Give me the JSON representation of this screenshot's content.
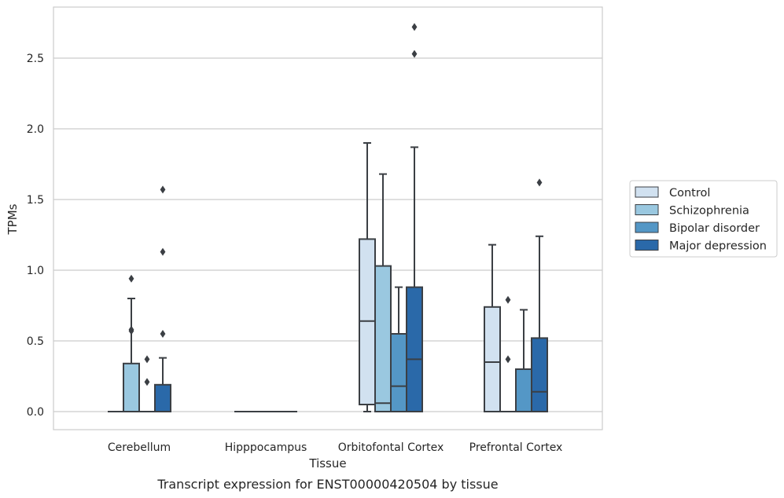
{
  "caption": "Transcript expression for ENST00000420504 by tissue",
  "chart_data": {
    "type": "box",
    "xlabel": "Tissue",
    "ylabel": "TPMs",
    "ylim": [
      -0.13,
      2.87
    ],
    "yticks": [
      "0.0",
      "0.5",
      "1.0",
      "1.5",
      "2.0",
      "2.5"
    ],
    "ytick_values": [
      0.0,
      0.5,
      1.0,
      1.5,
      2.0,
      2.5
    ],
    "grid": true,
    "legend_position": "right",
    "categories": [
      "Cerebellum",
      "Hipppocampus",
      "Orbitofontal Cortex",
      "Prefrontal Cortex"
    ],
    "series": [
      {
        "name": "Control",
        "color": "#d1e1f0",
        "boxes": [
          {
            "q1": 0.0,
            "median": 0.0,
            "q3": 0.0,
            "whislo": 0.0,
            "whishi": 0.0,
            "fliers": []
          },
          {
            "q1": 0.0,
            "median": 0.0,
            "q3": 0.0,
            "whislo": 0.0,
            "whishi": 0.0,
            "fliers": []
          },
          {
            "q1": 0.05,
            "median": 0.64,
            "q3": 1.22,
            "whislo": 0.0,
            "whishi": 1.9,
            "fliers": []
          },
          {
            "q1": 0.0,
            "median": 0.35,
            "q3": 0.74,
            "whislo": 0.0,
            "whishi": 1.18,
            "fliers": []
          }
        ]
      },
      {
        "name": "Schizophrenia",
        "color": "#9ac8e0",
        "boxes": [
          {
            "q1": 0.0,
            "median": 0.0,
            "q3": 0.34,
            "whislo": 0.0,
            "whishi": 0.8,
            "fliers": [
              0.94,
              0.58,
              0.57
            ]
          },
          {
            "q1": 0.0,
            "median": 0.0,
            "q3": 0.0,
            "whislo": 0.0,
            "whishi": 0.0,
            "fliers": []
          },
          {
            "q1": 0.0,
            "median": 0.06,
            "q3": 1.03,
            "whislo": 0.0,
            "whishi": 1.68,
            "fliers": []
          },
          {
            "q1": 0.0,
            "median": 0.0,
            "q3": 0.0,
            "whislo": 0.0,
            "whishi": 0.0,
            "fliers": [
              0.79,
              0.37
            ]
          }
        ]
      },
      {
        "name": "Bipolar disorder",
        "color": "#5497c6",
        "boxes": [
          {
            "q1": 0.0,
            "median": 0.0,
            "q3": 0.0,
            "whislo": 0.0,
            "whishi": 0.0,
            "fliers": [
              0.37,
              0.21
            ]
          },
          {
            "q1": 0.0,
            "median": 0.0,
            "q3": 0.0,
            "whislo": 0.0,
            "whishi": 0.0,
            "fliers": []
          },
          {
            "q1": 0.0,
            "median": 0.18,
            "q3": 0.55,
            "whislo": 0.0,
            "whishi": 0.88,
            "fliers": []
          },
          {
            "q1": 0.0,
            "median": 0.0,
            "q3": 0.3,
            "whislo": 0.0,
            "whishi": 0.72,
            "fliers": []
          }
        ]
      },
      {
        "name": "Major depression",
        "color": "#2a69a9",
        "boxes": [
          {
            "q1": 0.0,
            "median": 0.0,
            "q3": 0.19,
            "whislo": 0.0,
            "whishi": 0.38,
            "fliers": [
              1.57,
              1.13,
              0.55
            ]
          },
          {
            "q1": 0.0,
            "median": 0.0,
            "q3": 0.0,
            "whislo": 0.0,
            "whishi": 0.0,
            "fliers": []
          },
          {
            "q1": 0.0,
            "median": 0.37,
            "q3": 0.88,
            "whislo": 0.0,
            "whishi": 1.87,
            "fliers": [
              2.72,
              2.53
            ]
          },
          {
            "q1": 0.0,
            "median": 0.14,
            "q3": 0.52,
            "whislo": 0.0,
            "whishi": 1.24,
            "fliers": [
              1.62
            ]
          }
        ]
      }
    ]
  }
}
